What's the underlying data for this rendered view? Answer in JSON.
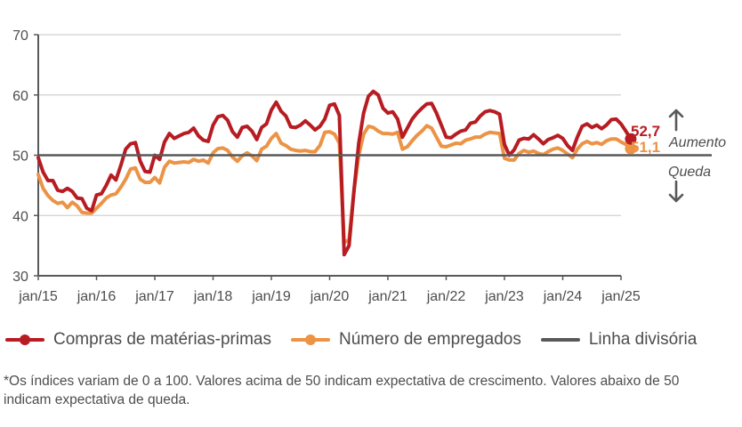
{
  "chart_data": {
    "type": "line",
    "title": "",
    "xlabel": "",
    "ylabel": "",
    "ylim": [
      30,
      70
    ],
    "yticks": [
      30,
      40,
      50,
      60,
      70
    ],
    "grid": true,
    "x_start": "jan/15",
    "x_end": "jan/25",
    "frequency": "monthly",
    "xtick_labels": [
      "jan/15",
      "jan/16",
      "jan/17",
      "jan/18",
      "jan/19",
      "jan/20",
      "jan/21",
      "jan/22",
      "jan/23",
      "jan/24",
      "jan/25"
    ],
    "reference_line": {
      "name": "Linha divisória",
      "value": 50,
      "color": "#58595b"
    },
    "series": [
      {
        "name": "Compras de matérias-primas",
        "color": "#b71c22",
        "end_label": "52,7",
        "values": [
          49.6,
          47.2,
          45.8,
          45.8,
          44.2,
          44.0,
          44.5,
          44.0,
          42.9,
          42.8,
          41.2,
          40.8,
          43.4,
          43.6,
          45.0,
          46.7,
          45.9,
          48.3,
          51.0,
          51.9,
          52.1,
          49.0,
          47.3,
          47.2,
          50.0,
          49.3,
          52.2,
          53.6,
          52.8,
          53.2,
          53.6,
          53.8,
          54.5,
          53.2,
          52.5,
          52.3,
          55.0,
          56.4,
          56.6,
          55.8,
          53.9,
          53.0,
          54.6,
          54.8,
          54.0,
          52.6,
          54.6,
          55.2,
          57.5,
          58.8,
          57.3,
          56.5,
          54.7,
          54.6,
          55.0,
          55.7,
          55.0,
          54.2,
          54.8,
          56.0,
          58.3,
          58.5,
          56.6,
          33.5,
          35.0,
          44.0,
          52.0,
          57.0,
          59.8,
          60.6,
          60.0,
          57.8,
          57.0,
          57.2,
          56.0,
          53.0,
          54.5,
          56.0,
          57.0,
          57.8,
          58.5,
          58.6,
          57.0,
          55.0,
          53.0,
          52.9,
          53.5,
          54.0,
          54.2,
          55.3,
          55.5,
          56.5,
          57.2,
          57.4,
          57.2,
          56.8,
          51.8,
          50.0,
          50.9,
          52.5,
          52.8,
          52.7,
          53.4,
          52.7,
          51.9,
          52.6,
          52.9,
          53.3,
          52.8,
          51.6,
          50.8,
          53.0,
          54.8,
          55.2,
          54.6,
          55.0,
          54.4,
          55.0,
          55.9,
          56.0,
          55.2,
          54.0,
          52.7
        ]
      },
      {
        "name": "Número de empregados",
        "color": "#ec9345",
        "end_label": "51,1",
        "values": [
          46.8,
          44.5,
          43.3,
          42.5,
          42.0,
          42.2,
          41.3,
          42.2,
          41.6,
          40.5,
          40.4,
          40.4,
          41.2,
          42.0,
          42.9,
          43.4,
          43.6,
          44.7,
          46.0,
          47.7,
          47.9,
          46.0,
          45.5,
          45.5,
          46.3,
          45.4,
          48.0,
          49.0,
          48.7,
          48.8,
          48.9,
          48.8,
          49.3,
          49.0,
          49.2,
          48.7,
          50.4,
          51.1,
          51.2,
          50.8,
          49.7,
          49.0,
          49.9,
          50.4,
          49.9,
          49.1,
          51.0,
          51.5,
          52.8,
          53.6,
          52.0,
          51.6,
          51.0,
          50.8,
          50.7,
          50.8,
          50.6,
          50.6,
          51.6,
          53.8,
          53.9,
          53.5,
          52.0,
          35.5,
          36.0,
          44.0,
          50.0,
          53.5,
          54.8,
          54.6,
          54.0,
          53.6,
          53.6,
          53.5,
          53.8,
          51.0,
          51.4,
          52.4,
          53.3,
          54.0,
          54.9,
          54.5,
          53.0,
          51.5,
          51.4,
          51.7,
          52.0,
          51.9,
          52.5,
          52.7,
          53.0,
          53.0,
          53.5,
          53.8,
          53.7,
          53.6,
          49.5,
          49.2,
          49.2,
          50.3,
          50.8,
          50.5,
          50.7,
          50.3,
          50.1,
          50.6,
          51.0,
          51.2,
          50.8,
          50.2,
          49.6,
          51.0,
          51.9,
          52.3,
          51.9,
          52.1,
          51.8,
          52.4,
          52.7,
          52.7,
          52.2,
          51.8,
          51.1
        ]
      }
    ],
    "annotations": {
      "above": "Aumento",
      "below": "Queda",
      "up_arrow": "arrow-up-icon",
      "down_arrow": "arrow-down-icon"
    }
  },
  "legend": {
    "items": [
      {
        "label": "Compras de matérias-primas",
        "color": "#b71c22",
        "marker": "line-dot"
      },
      {
        "label": "Número de empregados",
        "color": "#ec9345",
        "marker": "line-dot"
      },
      {
        "label": "Linha divisória",
        "color": "#58595b",
        "marker": "line"
      }
    ]
  },
  "footnote": "*Os índices variam de 0 a 100. Valores acima de 50 indicam expectativa de crescimento. Valores abaixo de 50 indicam expectativa de queda."
}
